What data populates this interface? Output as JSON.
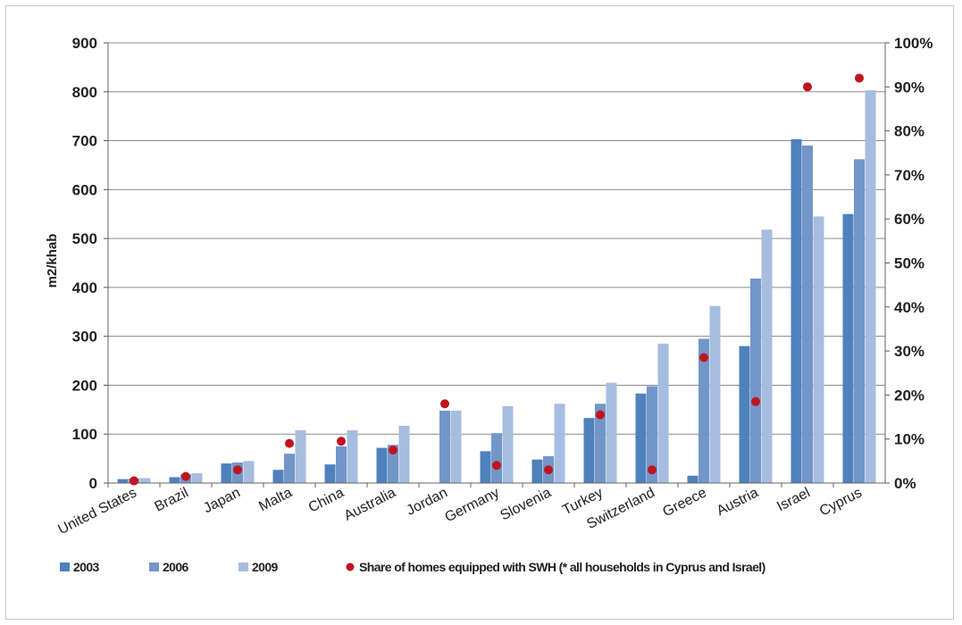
{
  "chart_data": {
    "type": "bar",
    "ylabel": "m2/khab",
    "ylim": [
      0,
      900
    ],
    "yticks": [
      0,
      100,
      200,
      300,
      400,
      500,
      600,
      700,
      800,
      900
    ],
    "y2lim": [
      0,
      100
    ],
    "y2ticks": [
      "0%",
      "10%",
      "20%",
      "30%",
      "40%",
      "50%",
      "60%",
      "70%",
      "80%",
      "90%",
      "100%"
    ],
    "grid": true,
    "legend_position": "bottom",
    "categories": [
      "United States",
      "Brazil",
      "Japan",
      "Malta",
      "China",
      "Australia",
      "Jordan",
      "Germany",
      "Slovenia",
      "Turkey",
      "Switzerland",
      "Greece",
      "Austria",
      "Israel",
      "Cyprus"
    ],
    "series": [
      {
        "name": "2003",
        "color": "#4f81bd",
        "values": [
          8,
          12,
          40,
          27,
          38,
          72,
          null,
          65,
          48,
          133,
          183,
          15,
          280,
          703,
          550
        ]
      },
      {
        "name": "2006",
        "color": "#7396c8",
        "values": [
          9,
          18,
          42,
          60,
          75,
          78,
          148,
          102,
          55,
          162,
          198,
          295,
          418,
          690,
          662
        ]
      },
      {
        "name": "2009",
        "color": "#a6bde0",
        "values": [
          10,
          20,
          45,
          108,
          108,
          117,
          148,
          157,
          162,
          205,
          285,
          362,
          518,
          545,
          803
        ]
      }
    ],
    "markers": {
      "name": "Share of homes equipped with SWH (* all households in Cyprus and Israel)",
      "color": "#c0141f",
      "axis": "secondary",
      "values": [
        0.5,
        1.5,
        3,
        9,
        9.5,
        7.5,
        18,
        4,
        3,
        15.5,
        3,
        28.5,
        18.5,
        90,
        92
      ]
    }
  }
}
